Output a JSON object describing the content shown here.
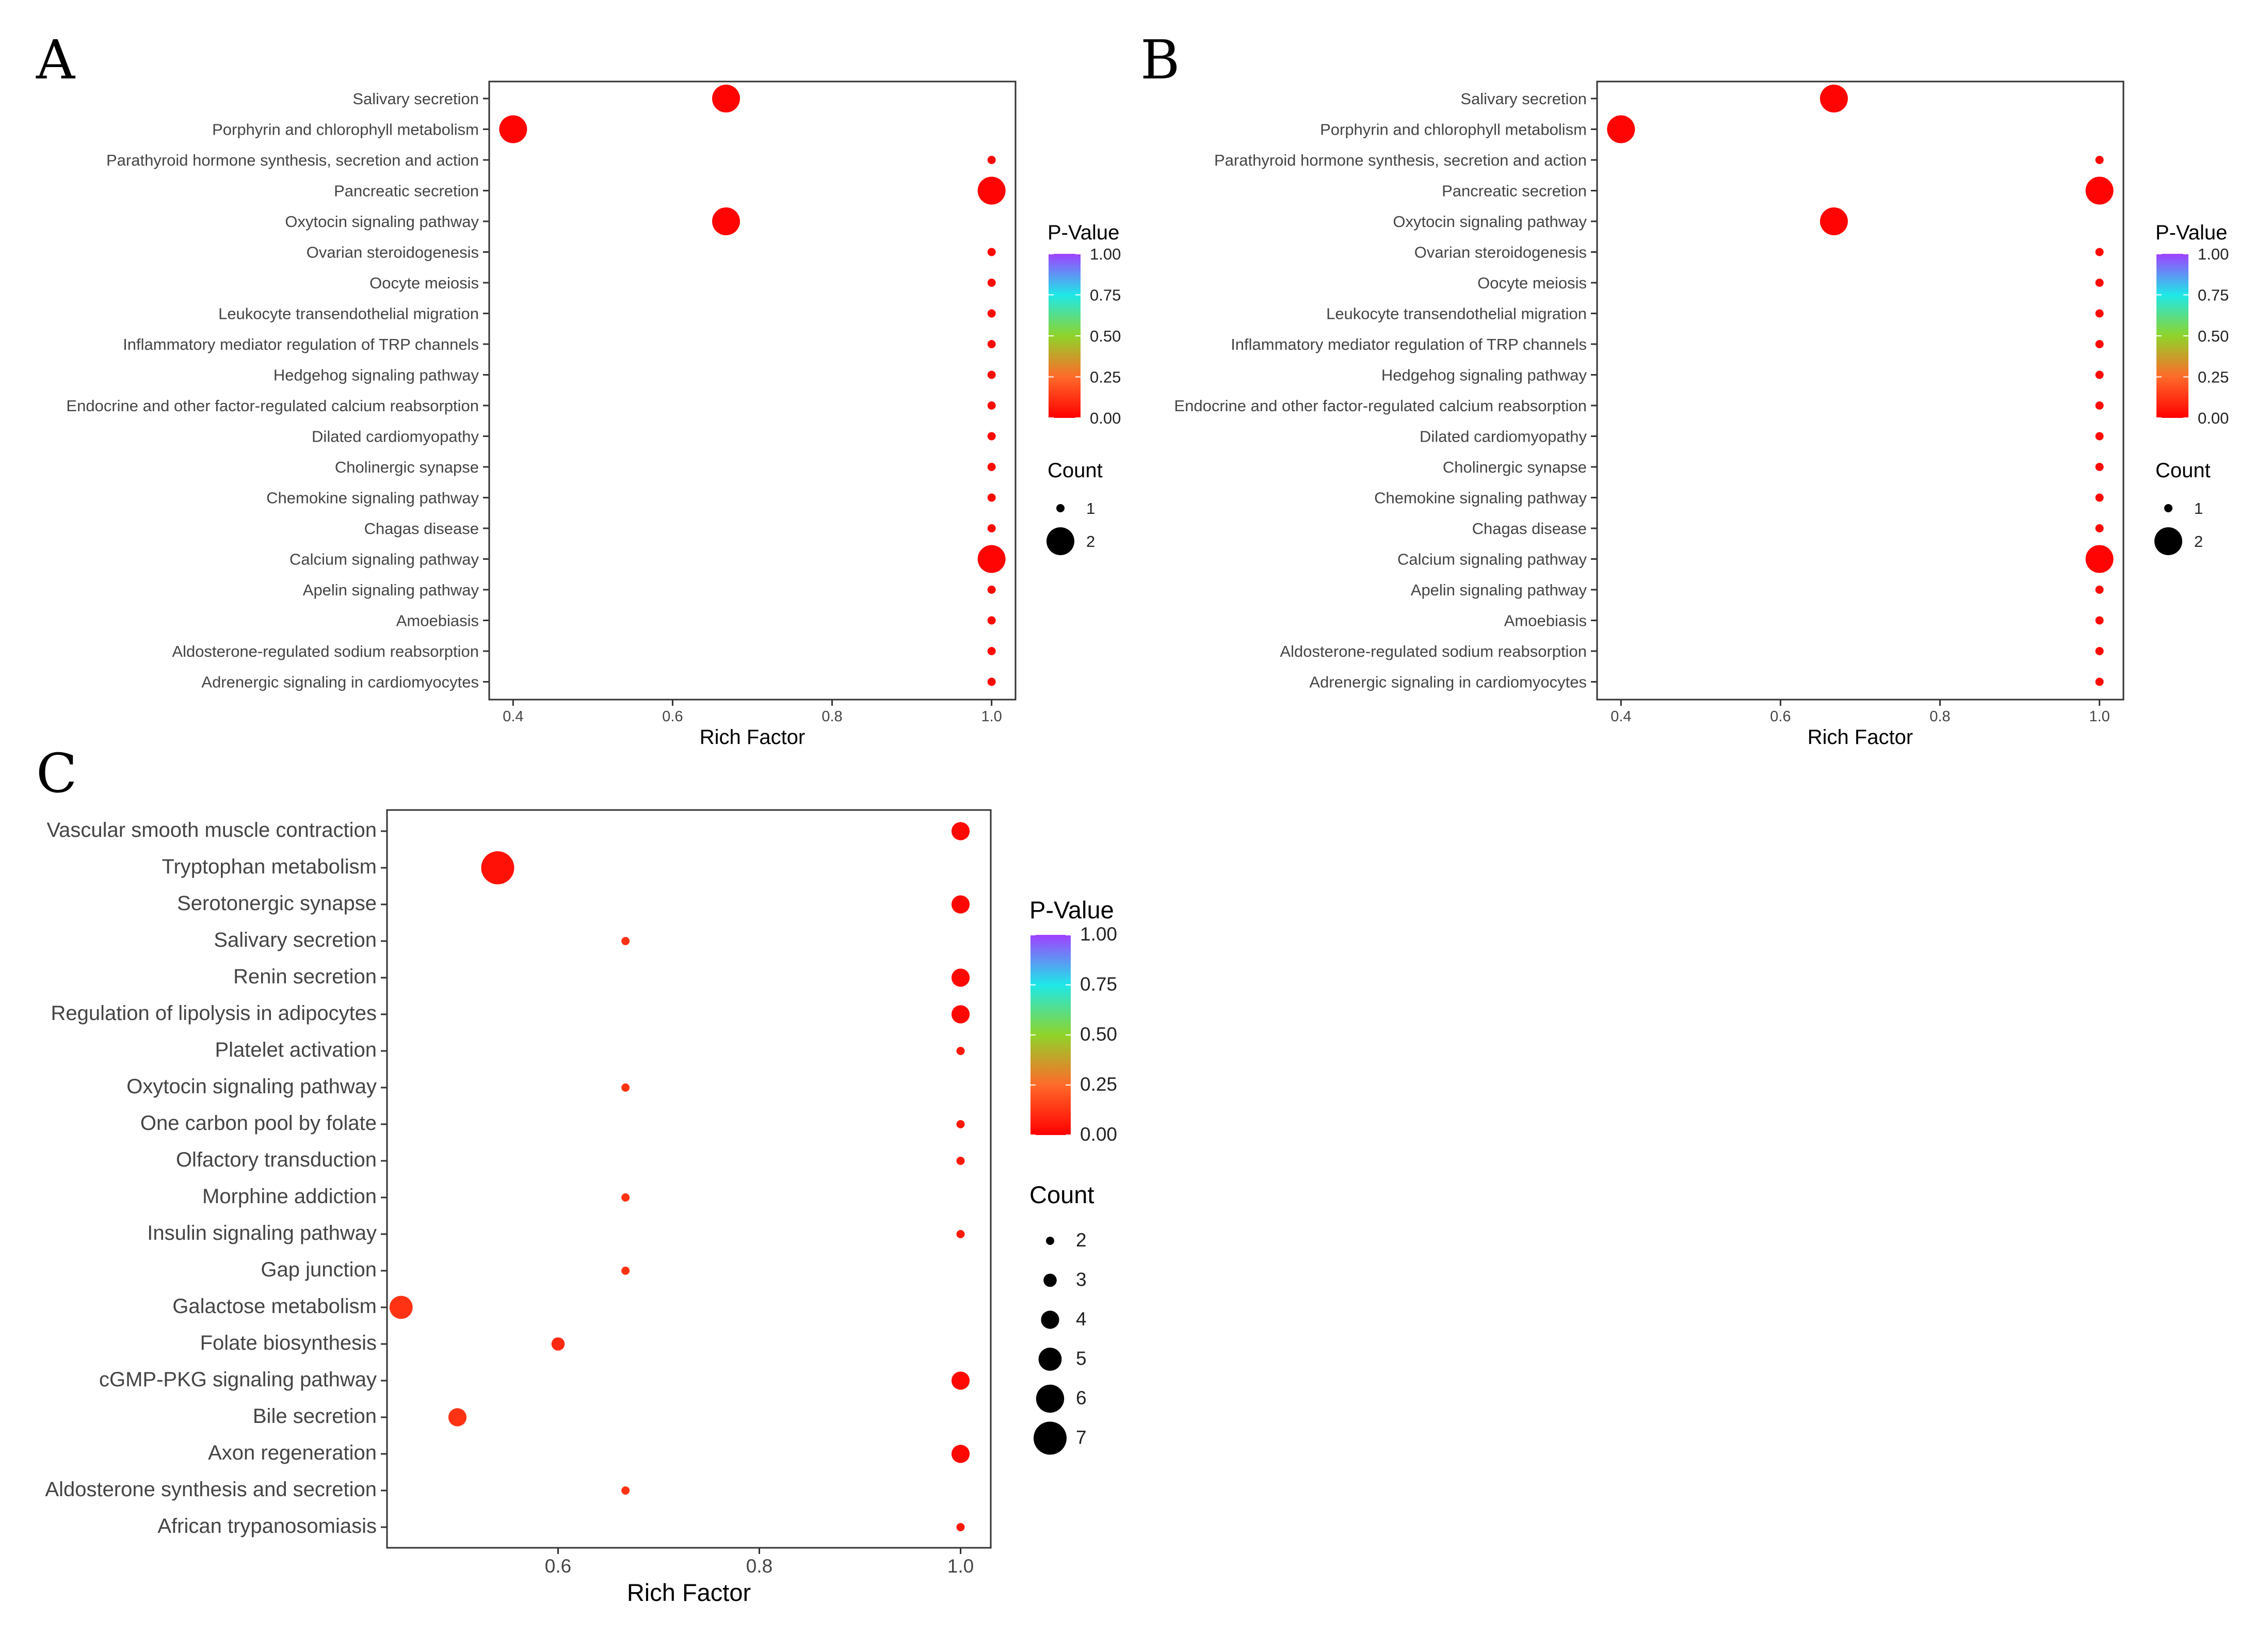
{
  "chart_data": [
    {
      "type": "scatter",
      "panel": "A",
      "xlabel": "Rich Factor",
      "xlim": [
        0.37,
        1.03
      ],
      "xticks": [
        "0.4",
        "0.6",
        "0.8",
        "1.0"
      ],
      "xtick_values": [
        0.4,
        0.6,
        0.8,
        1.0
      ],
      "categories": [
        "Salivary secretion",
        "Porphyrin and chlorophyll metabolism",
        "Parathyroid hormone synthesis, secretion and action",
        "Pancreatic secretion",
        "Oxytocin signaling pathway",
        "Ovarian steroidogenesis",
        "Oocyte meiosis",
        "Leukocyte transendothelial migration",
        "Inflammatory mediator regulation of TRP channels",
        "Hedgehog signaling pathway",
        "Endocrine and other factor-regulated calcium reabsorption",
        "Dilated cardiomyopathy",
        "Cholinergic synapse",
        "Chemokine signaling pathway",
        "Chagas disease",
        "Calcium signaling pathway",
        "Apelin signaling pathway",
        "Amoebiasis",
        "Aldosterone-regulated sodium reabsorption",
        "Adrenergic signaling in cardiomyocytes"
      ],
      "rich_factor": [
        0.667,
        0.4,
        1.0,
        1.0,
        0.667,
        1.0,
        1.0,
        1.0,
        1.0,
        1.0,
        1.0,
        1.0,
        1.0,
        1.0,
        1.0,
        1.0,
        1.0,
        1.0,
        1.0,
        1.0
      ],
      "count": [
        2,
        2,
        1,
        2,
        2,
        1,
        1,
        1,
        1,
        1,
        1,
        1,
        1,
        1,
        1,
        2,
        1,
        1,
        1,
        1
      ],
      "p_value": [
        0.01,
        0.01,
        0.02,
        0.01,
        0.01,
        0.02,
        0.02,
        0.02,
        0.02,
        0.02,
        0.02,
        0.02,
        0.02,
        0.02,
        0.02,
        0.01,
        0.02,
        0.02,
        0.02,
        0.02
      ],
      "color_legend": {
        "title": "P-Value",
        "ticks": [
          "1.00",
          "0.75",
          "0.50",
          "0.25",
          "0.00"
        ]
      },
      "size_legend": {
        "title": "Count",
        "values": [
          "1",
          "2"
        ]
      }
    },
    {
      "type": "scatter",
      "panel": "B",
      "xlabel": "Rich Factor",
      "xlim": [
        0.37,
        1.03
      ],
      "xticks": [
        "0.4",
        "0.6",
        "0.8",
        "1.0"
      ],
      "xtick_values": [
        0.4,
        0.6,
        0.8,
        1.0
      ],
      "categories": [
        "Salivary secretion",
        "Porphyrin and chlorophyll metabolism",
        "Parathyroid hormone synthesis, secretion and action",
        "Pancreatic secretion",
        "Oxytocin signaling pathway",
        "Ovarian steroidogenesis",
        "Oocyte meiosis",
        "Leukocyte transendothelial migration",
        "Inflammatory mediator regulation of TRP channels",
        "Hedgehog signaling pathway",
        "Endocrine and other factor-regulated calcium reabsorption",
        "Dilated cardiomyopathy",
        "Cholinergic synapse",
        "Chemokine signaling pathway",
        "Chagas disease",
        "Calcium signaling pathway",
        "Apelin signaling pathway",
        "Amoebiasis",
        "Aldosterone-regulated sodium reabsorption",
        "Adrenergic signaling in cardiomyocytes"
      ],
      "rich_factor": [
        0.667,
        0.4,
        1.0,
        1.0,
        0.667,
        1.0,
        1.0,
        1.0,
        1.0,
        1.0,
        1.0,
        1.0,
        1.0,
        1.0,
        1.0,
        1.0,
        1.0,
        1.0,
        1.0,
        1.0
      ],
      "count": [
        2,
        2,
        1,
        2,
        2,
        1,
        1,
        1,
        1,
        1,
        1,
        1,
        1,
        1,
        1,
        2,
        1,
        1,
        1,
        1
      ],
      "p_value": [
        0.01,
        0.01,
        0.02,
        0.01,
        0.01,
        0.02,
        0.02,
        0.02,
        0.02,
        0.02,
        0.02,
        0.02,
        0.02,
        0.02,
        0.02,
        0.01,
        0.02,
        0.02,
        0.02,
        0.02
      ],
      "color_legend": {
        "title": "P-Value",
        "ticks": [
          "1.00",
          "0.75",
          "0.50",
          "0.25",
          "0.00"
        ]
      },
      "size_legend": {
        "title": "Count",
        "values": [
          "1",
          "2"
        ]
      }
    },
    {
      "type": "scatter",
      "panel": "C",
      "xlabel": "Rich Factor",
      "xlim": [
        0.43,
        1.03
      ],
      "xticks": [
        "0.6",
        "0.8",
        "1.0"
      ],
      "xtick_values": [
        0.6,
        0.8,
        1.0
      ],
      "categories": [
        "Vascular smooth muscle contraction",
        "Tryptophan metabolism",
        "Serotonergic synapse",
        "Salivary secretion",
        "Renin secretion",
        "Regulation of lipolysis in adipocytes",
        "Platelet activation",
        "Oxytocin signaling pathway",
        "One carbon pool by folate",
        "Olfactory transduction",
        "Morphine addiction",
        "Insulin signaling pathway",
        "Gap junction",
        "Galactose metabolism",
        "Folate biosynthesis",
        "cGMP-PKG signaling pathway",
        "Bile secretion",
        "Axon regeneration",
        "Aldosterone synthesis and secretion",
        "African trypanosomiasis"
      ],
      "rich_factor": [
        1.0,
        0.54,
        1.0,
        0.667,
        1.0,
        1.0,
        1.0,
        0.667,
        1.0,
        1.0,
        0.667,
        1.0,
        0.667,
        0.444,
        0.6,
        1.0,
        0.5,
        1.0,
        0.667,
        1.0
      ],
      "count": [
        4,
        7,
        4,
        2,
        4,
        4,
        2,
        2,
        2,
        2,
        2,
        2,
        2,
        5,
        3,
        4,
        4,
        4,
        2,
        2
      ],
      "p_value": [
        0.02,
        0.04,
        0.02,
        0.12,
        0.02,
        0.02,
        0.06,
        0.12,
        0.06,
        0.06,
        0.12,
        0.06,
        0.12,
        0.12,
        0.1,
        0.02,
        0.12,
        0.02,
        0.12,
        0.06
      ],
      "color_legend": {
        "title": "P-Value",
        "ticks": [
          "1.00",
          "0.75",
          "0.50",
          "0.25",
          "0.00"
        ]
      },
      "size_legend": {
        "title": "Count",
        "values": [
          "2",
          "3",
          "4",
          "5",
          "6",
          "7"
        ]
      }
    }
  ],
  "colors": {
    "low_p": "#ff0000",
    "mid_low_p": "#ff6a2a",
    "mid_p": "#8fd42a",
    "high_mid_p": "#1ee8e8",
    "high_p": "#a040ff"
  }
}
